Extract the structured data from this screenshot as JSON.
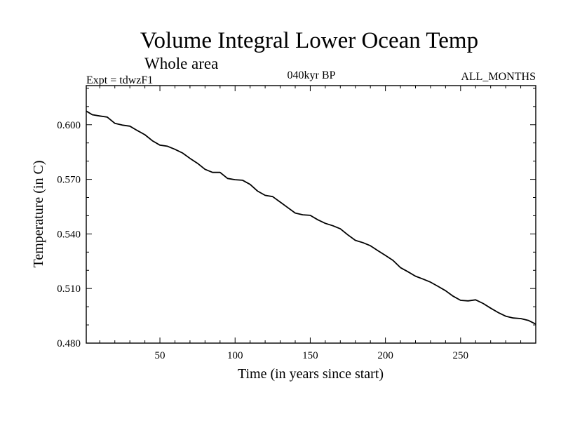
{
  "chart_data": {
    "type": "line",
    "title": "Volume Integral Lower Ocean Temp",
    "subtitle": "Whole area",
    "expt_label": "Expt = tdwzF1",
    "center_label": "040kyr BP",
    "right_label": "ALL_MONTHS",
    "xlabel": "Time (in years since start)",
    "ylabel": "Temperature (in C)",
    "xlim": [
      1,
      300
    ],
    "ylim": [
      0.48,
      0.6215
    ],
    "x_ticks": [
      50,
      100,
      150,
      200,
      250
    ],
    "x_tick_labels": [
      "50",
      "100",
      "150",
      "200",
      "250"
    ],
    "y_ticks": [
      0.48,
      0.51,
      0.54,
      0.57,
      0.6
    ],
    "y_tick_labels": [
      "0.480",
      "0.510",
      "0.540",
      "0.570",
      "0.600"
    ],
    "grid": false,
    "series": [
      {
        "name": "Temperature",
        "x": [
          1,
          5,
          10,
          15,
          20,
          25,
          30,
          35,
          40,
          45,
          50,
          55,
          60,
          65,
          70,
          75,
          80,
          85,
          90,
          95,
          100,
          105,
          110,
          115,
          120,
          125,
          130,
          135,
          140,
          145,
          150,
          155,
          160,
          165,
          170,
          175,
          180,
          185,
          190,
          195,
          200,
          205,
          210,
          215,
          220,
          225,
          230,
          235,
          240,
          245,
          250,
          255,
          260,
          265,
          270,
          275,
          280,
          285,
          290,
          295,
          300
        ],
        "values": [
          0.6075,
          0.6055,
          0.6048,
          0.6042,
          0.6008,
          0.5998,
          0.5992,
          0.5968,
          0.5945,
          0.5912,
          0.5888,
          0.5882,
          0.5865,
          0.5845,
          0.5815,
          0.5788,
          0.5755,
          0.5738,
          0.5738,
          0.5705,
          0.5698,
          0.5695,
          0.5672,
          0.5635,
          0.5612,
          0.5605,
          0.5575,
          0.5545,
          0.5515,
          0.5505,
          0.5502,
          0.5478,
          0.5458,
          0.5445,
          0.5428,
          0.5395,
          0.5365,
          0.5352,
          0.5335,
          0.5308,
          0.5282,
          0.5255,
          0.5215,
          0.5192,
          0.5168,
          0.5152,
          0.5135,
          0.5112,
          0.5088,
          0.5058,
          0.5035,
          0.5032,
          0.5038,
          0.5018,
          0.4992,
          0.4968,
          0.4948,
          0.4938,
          0.4935,
          0.4925,
          0.4905
        ]
      }
    ]
  }
}
